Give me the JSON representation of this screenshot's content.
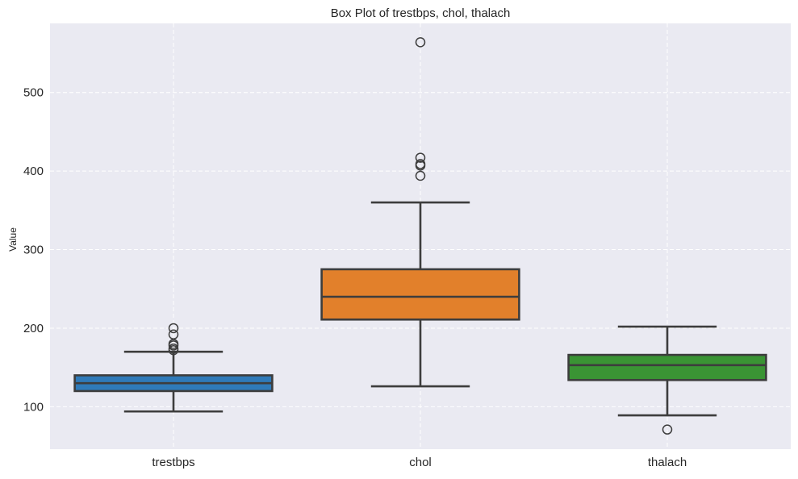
{
  "chart_data": {
    "type": "box",
    "title": "Box Plot of trestbps, chol, thalach",
    "xlabel": "",
    "ylabel": "Value",
    "ylim": [
      46,
      588
    ],
    "yticks": [
      100,
      200,
      300,
      400,
      500
    ],
    "grid": true,
    "categories": [
      "trestbps",
      "chol",
      "thalach"
    ],
    "series": [
      {
        "color": "#2f7ab9",
        "whisker_low": 94,
        "q1": 120,
        "median": 130,
        "q3": 140,
        "whisker_high": 170,
        "outliers": [
          172,
          174,
          178,
          180,
          192,
          200
        ]
      },
      {
        "color": "#e2802b",
        "whisker_low": 126,
        "q1": 211,
        "median": 240,
        "q3": 275,
        "whisker_high": 360,
        "outliers": [
          394,
          407,
          409,
          417,
          564
        ]
      },
      {
        "color": "#3a9434",
        "whisker_low": 89,
        "q1": 134,
        "median": 153,
        "q3": 166,
        "whisker_high": 202,
        "outliers": [
          71
        ]
      }
    ]
  }
}
